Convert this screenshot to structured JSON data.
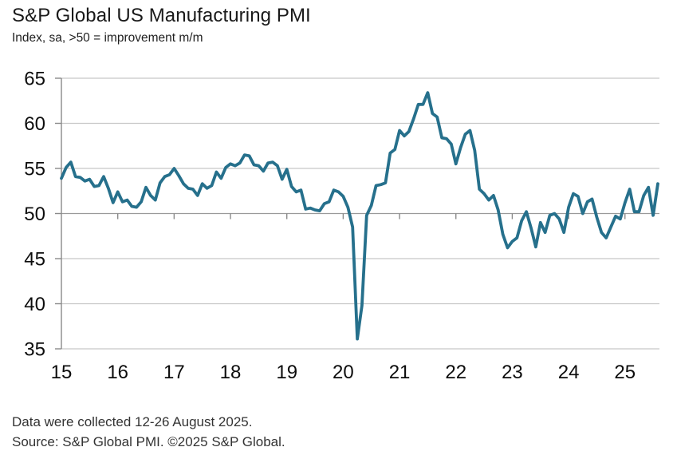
{
  "header": {
    "title": "S&P Global US Manufacturing PMI",
    "subtitle": "Index, sa, >50 = improvement m/m"
  },
  "footer": {
    "line1": "Data were collected 12-26 August 2025.",
    "line2": "Source: S&P Global PMI. ©2025 S&P Global."
  },
  "colors": {
    "line": "#26708c",
    "grid": "#c7c7c7",
    "reference_line": "#9a9a9a",
    "axis": "#8a8a8a",
    "tick_label": "#0d0d0d"
  },
  "chart_data": {
    "type": "line",
    "title": "S&P Global US Manufacturing PMI",
    "subtitle": "Index, sa, >50 = improvement m/m",
    "frequency": "monthly",
    "x_start": "2015-01",
    "x_end": "2025-08",
    "xtick_labels": [
      "15",
      "16",
      "17",
      "18",
      "19",
      "20",
      "21",
      "22",
      "23",
      "24",
      "25"
    ],
    "yticks": [
      35,
      40,
      45,
      50,
      55,
      60,
      65
    ],
    "ylim": [
      35,
      65
    ],
    "grid": "horizontal",
    "legend": "none",
    "reference_level": 50,
    "series": [
      {
        "name": "US Manufacturing PMI",
        "values": [
          53.9,
          55.1,
          55.7,
          54.1,
          54.0,
          53.6,
          53.8,
          53.0,
          53.1,
          54.1,
          52.8,
          51.2,
          52.4,
          51.3,
          51.5,
          50.8,
          50.7,
          51.3,
          52.9,
          52.0,
          51.5,
          53.4,
          54.1,
          54.3,
          55.0,
          54.2,
          53.3,
          52.8,
          52.7,
          52.0,
          53.3,
          52.8,
          53.1,
          54.6,
          53.9,
          55.1,
          55.5,
          55.3,
          55.6,
          56.5,
          56.4,
          55.4,
          55.3,
          54.7,
          55.6,
          55.7,
          55.3,
          53.8,
          54.9,
          53.0,
          52.4,
          52.6,
          50.5,
          50.6,
          50.4,
          50.3,
          51.1,
          51.3,
          52.6,
          52.4,
          51.9,
          50.7,
          48.5,
          36.1,
          39.8,
          49.8,
          50.9,
          53.1,
          53.2,
          53.4,
          56.7,
          57.1,
          59.2,
          58.6,
          59.1,
          60.5,
          62.1,
          62.1,
          63.4,
          61.1,
          60.7,
          58.4,
          58.3,
          57.7,
          55.5,
          57.3,
          58.8,
          59.2,
          57.0,
          52.7,
          52.2,
          51.5,
          52.0,
          50.4,
          47.7,
          46.2,
          46.9,
          47.3,
          49.2,
          50.2,
          48.4,
          46.3,
          49.0,
          47.9,
          49.8,
          50.0,
          49.4,
          47.9,
          50.7,
          52.2,
          51.9,
          50.0,
          51.3,
          51.6,
          49.6,
          47.9,
          47.3,
          48.5,
          49.7,
          49.4,
          51.2,
          52.7,
          50.2,
          50.2,
          52.0,
          52.9,
          49.8,
          53.3
        ]
      }
    ]
  }
}
